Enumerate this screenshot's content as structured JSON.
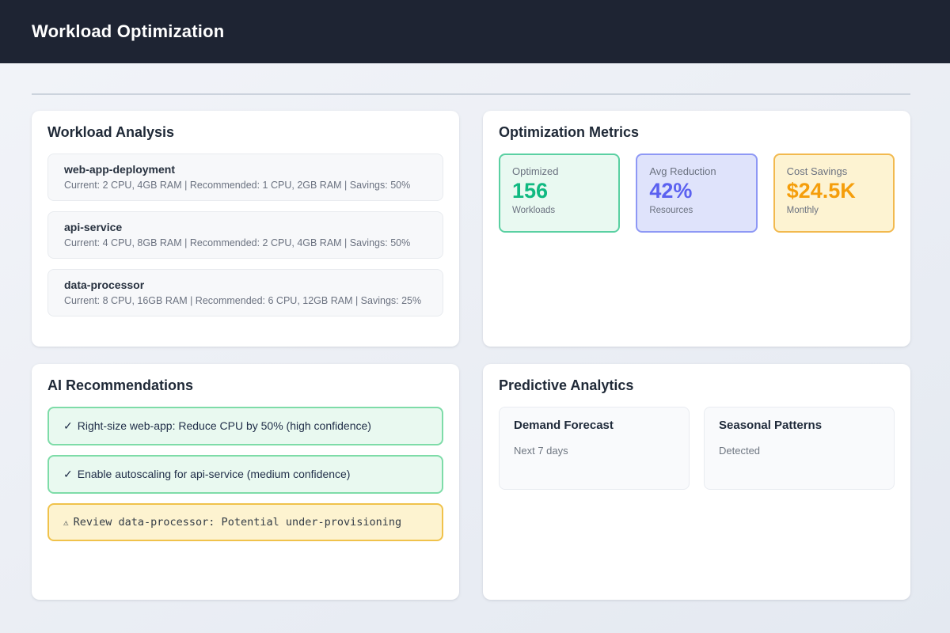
{
  "header": {
    "title": "Workload Optimization"
  },
  "colors": {
    "header_bg": "#1e2433",
    "page_bg": "#eceff5",
    "card_bg": "#ffffff",
    "divider": "#ccd3dd",
    "muted_text": "#6b7280",
    "dark_text": "#1f2937"
  },
  "cards": {
    "workload_analysis": {
      "title": "Workload Analysis",
      "items": [
        {
          "name": "web-app-deployment",
          "details": "Current: 2 CPU, 4GB RAM | Recommended: 1 CPU, 2GB RAM | Savings: 50%"
        },
        {
          "name": "api-service",
          "details": "Current: 4 CPU, 8GB RAM | Recommended: 2 CPU, 4GB RAM | Savings: 50%"
        },
        {
          "name": "data-processor",
          "details": "Current: 8 CPU, 16GB RAM | Recommended: 6 CPU, 12GB RAM | Savings: 25%"
        }
      ]
    },
    "optimization_metrics": {
      "title": "Optimization Metrics",
      "metrics": [
        {
          "label": "Optimized",
          "value": "156",
          "sub": "Workloads",
          "colors": {
            "bg": "#e9f9f1",
            "border": "#5ad0a2",
            "value": "#10b981"
          }
        },
        {
          "label": "Avg Reduction",
          "value": "42%",
          "sub": "Resources",
          "colors": {
            "bg": "#dfe3fb",
            "border": "#8e98f5",
            "value": "#5b61f0"
          }
        },
        {
          "label": "Cost Savings",
          "value": "$24.5K",
          "sub": "Monthly",
          "colors": {
            "bg": "#fdf3d2",
            "border": "#f2b94e",
            "value": "#f59e0b"
          }
        }
      ]
    },
    "ai_recommendations": {
      "title": "AI Recommendations",
      "items": [
        {
          "icon": "✓",
          "text": "Right-size web-app: Reduce CPU by 50% (high confidence)",
          "type": "success",
          "colors": {
            "bg": "#e9f9f0",
            "border": "#7edca8"
          }
        },
        {
          "icon": "✓",
          "text": "Enable autoscaling for api-service (medium confidence)",
          "type": "success",
          "colors": {
            "bg": "#e9f9f0",
            "border": "#7edca8"
          }
        },
        {
          "icon": "⚠",
          "text": "Review data-processor: Potential under-provisioning",
          "type": "warning",
          "colors": {
            "bg": "#fdf3d0",
            "border": "#f0c24b"
          }
        }
      ]
    },
    "predictive_analytics": {
      "title": "Predictive Analytics",
      "panels": [
        {
          "title": "Demand Forecast",
          "sub": "Next 7 days"
        },
        {
          "title": "Seasonal Patterns",
          "sub": "Detected"
        }
      ]
    }
  }
}
